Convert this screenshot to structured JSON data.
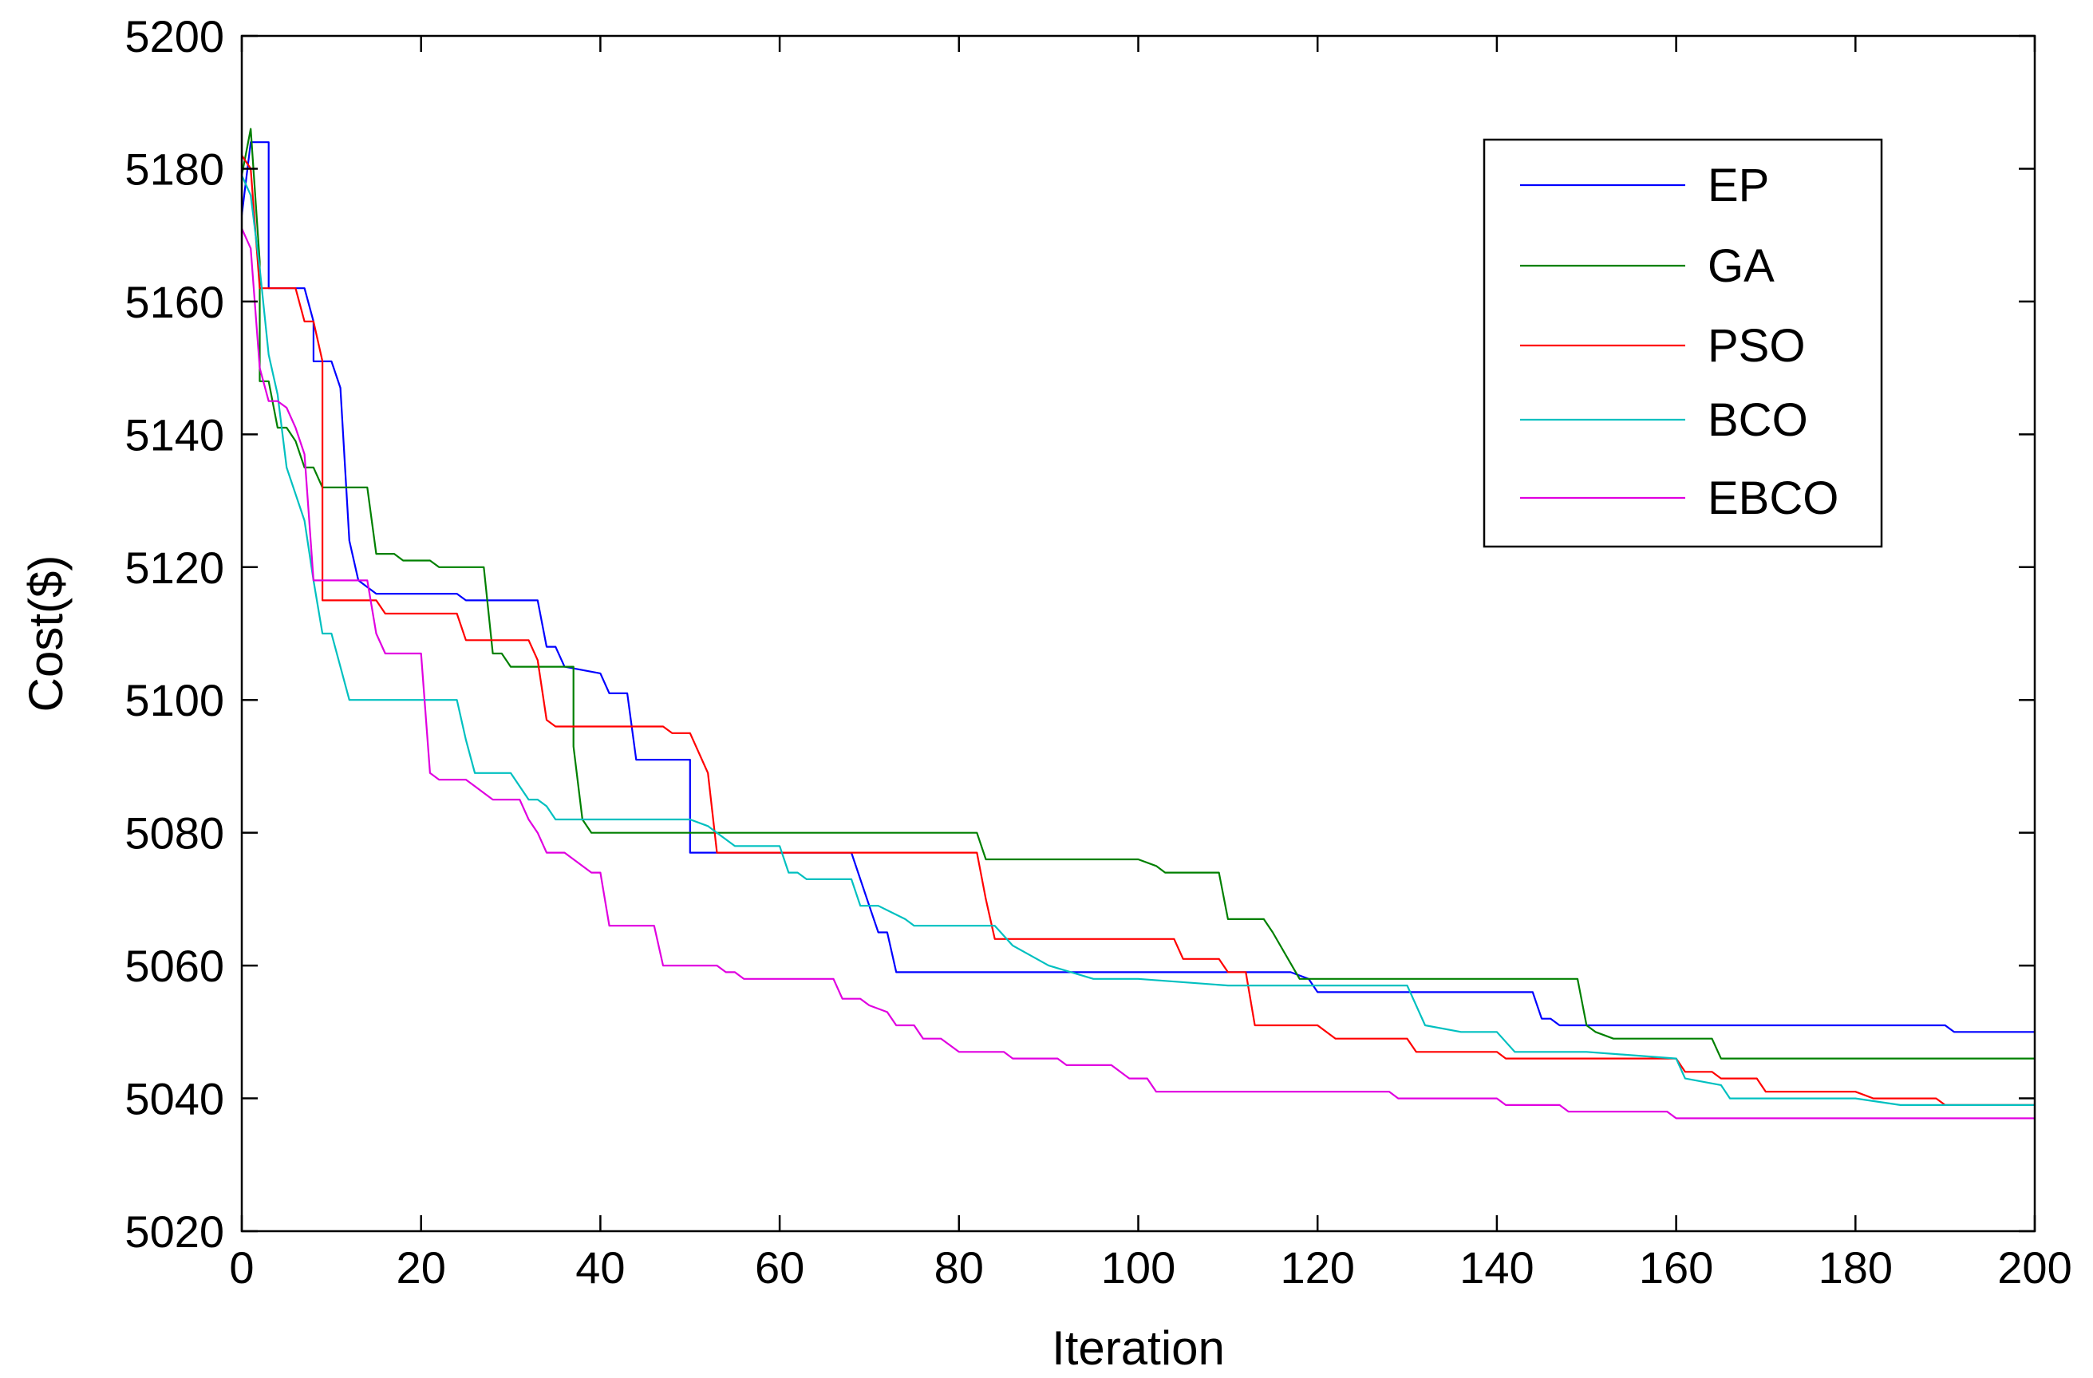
{
  "chart_data": {
    "type": "line",
    "title": "",
    "xlabel": "Iteration",
    "ylabel": "Cost($)",
    "xlim": [
      0,
      200
    ],
    "ylim": [
      5020,
      5200
    ],
    "xticks": [
      "0",
      "20",
      "40",
      "60",
      "80",
      "100",
      "120",
      "140",
      "160",
      "180",
      "200"
    ],
    "yticks": [
      "5020",
      "5040",
      "5060",
      "5080",
      "5100",
      "5120",
      "5140",
      "5160",
      "5180",
      "5200"
    ],
    "grid": false,
    "legend_position": "top-right",
    "series": [
      {
        "name": "EP",
        "color": "#0000ff",
        "points": [
          [
            0,
            5173
          ],
          [
            1,
            5184
          ],
          [
            3,
            5184
          ],
          [
            3,
            5162
          ],
          [
            7,
            5162
          ],
          [
            8,
            5157
          ],
          [
            8,
            5151
          ],
          [
            10,
            5151
          ],
          [
            11,
            5147
          ],
          [
            12,
            5124
          ],
          [
            13,
            5118
          ],
          [
            14,
            5117
          ],
          [
            15,
            5116
          ],
          [
            20,
            5116
          ],
          [
            24,
            5116
          ],
          [
            25,
            5115
          ],
          [
            33,
            5115
          ],
          [
            34,
            5108
          ],
          [
            35,
            5108
          ],
          [
            36,
            5105
          ],
          [
            40,
            5104
          ],
          [
            41,
            5101
          ],
          [
            43,
            5101
          ],
          [
            44,
            5091
          ],
          [
            45,
            5091
          ],
          [
            50,
            5091
          ],
          [
            50,
            5077
          ],
          [
            53,
            5077
          ],
          [
            60,
            5077
          ],
          [
            68,
            5077
          ],
          [
            70,
            5069
          ],
          [
            71,
            5065
          ],
          [
            72,
            5065
          ],
          [
            73,
            5059
          ],
          [
            100,
            5059
          ],
          [
            117,
            5059
          ],
          [
            119,
            5058
          ],
          [
            120,
            5056
          ],
          [
            130,
            5056
          ],
          [
            135,
            5056
          ],
          [
            144,
            5056
          ],
          [
            145,
            5052
          ],
          [
            146,
            5052
          ],
          [
            147,
            5051
          ],
          [
            148,
            5051
          ],
          [
            150,
            5051
          ],
          [
            160,
            5051
          ],
          [
            170,
            5051
          ],
          [
            190,
            5051
          ],
          [
            191,
            5050
          ],
          [
            200,
            5050
          ]
        ]
      },
      {
        "name": "GA",
        "color": "#008000",
        "points": [
          [
            0,
            5179
          ],
          [
            1,
            5186
          ],
          [
            2,
            5166
          ],
          [
            2,
            5148
          ],
          [
            3,
            5148
          ],
          [
            4,
            5141
          ],
          [
            5,
            5141
          ],
          [
            6,
            5139
          ],
          [
            7,
            5135
          ],
          [
            8,
            5135
          ],
          [
            9,
            5132
          ],
          [
            10,
            5132
          ],
          [
            14,
            5132
          ],
          [
            15,
            5122
          ],
          [
            17,
            5122
          ],
          [
            18,
            5121
          ],
          [
            21,
            5121
          ],
          [
            22,
            5120
          ],
          [
            27,
            5120
          ],
          [
            28,
            5107
          ],
          [
            29,
            5107
          ],
          [
            30,
            5105
          ],
          [
            37,
            5105
          ],
          [
            37,
            5093
          ],
          [
            38,
            5082
          ],
          [
            39,
            5080
          ],
          [
            40,
            5080
          ],
          [
            60,
            5080
          ],
          [
            82,
            5080
          ],
          [
            83,
            5076
          ],
          [
            100,
            5076
          ],
          [
            102,
            5075
          ],
          [
            103,
            5074
          ],
          [
            109,
            5074
          ],
          [
            110,
            5067
          ],
          [
            114,
            5067
          ],
          [
            115,
            5065
          ],
          [
            118,
            5058
          ],
          [
            120,
            5058
          ],
          [
            149,
            5058
          ],
          [
            150,
            5051
          ],
          [
            151,
            5050
          ],
          [
            153,
            5049
          ],
          [
            157,
            5049
          ],
          [
            164,
            5049
          ],
          [
            165,
            5046
          ],
          [
            200,
            5046
          ]
        ]
      },
      {
        "name": "PSO",
        "color": "#ff0000",
        "points": [
          [
            0,
            5182
          ],
          [
            1,
            5180
          ],
          [
            2,
            5162
          ],
          [
            6,
            5162
          ],
          [
            7,
            5157
          ],
          [
            8,
            5157
          ],
          [
            9,
            5151
          ],
          [
            9,
            5115
          ],
          [
            15,
            5115
          ],
          [
            16,
            5113
          ],
          [
            24,
            5113
          ],
          [
            25,
            5109
          ],
          [
            32,
            5109
          ],
          [
            33,
            5106
          ],
          [
            34,
            5097
          ],
          [
            35,
            5096
          ],
          [
            37,
            5096
          ],
          [
            47,
            5096
          ],
          [
            48,
            5095
          ],
          [
            50,
            5095
          ],
          [
            52,
            5089
          ],
          [
            53,
            5077
          ],
          [
            60,
            5077
          ],
          [
            82,
            5077
          ],
          [
            83,
            5070
          ],
          [
            84,
            5064
          ],
          [
            100,
            5064
          ],
          [
            104,
            5064
          ],
          [
            105,
            5061
          ],
          [
            109,
            5061
          ],
          [
            110,
            5059
          ],
          [
            112,
            5059
          ],
          [
            113,
            5051
          ],
          [
            120,
            5051
          ],
          [
            122,
            5049
          ],
          [
            130,
            5049
          ],
          [
            131,
            5047
          ],
          [
            140,
            5047
          ],
          [
            141,
            5046
          ],
          [
            150,
            5046
          ],
          [
            160,
            5046
          ],
          [
            161,
            5044
          ],
          [
            164,
            5044
          ],
          [
            165,
            5043
          ],
          [
            169,
            5043
          ],
          [
            170,
            5041
          ],
          [
            180,
            5041
          ],
          [
            182,
            5040
          ],
          [
            189,
            5040
          ],
          [
            190,
            5039
          ],
          [
            200,
            5039
          ]
        ]
      },
      {
        "name": "BCO",
        "color": "#00c0c0",
        "points": [
          [
            0,
            5179
          ],
          [
            1,
            5176
          ],
          [
            2,
            5165
          ],
          [
            3,
            5152
          ],
          [
            4,
            5146
          ],
          [
            5,
            5135
          ],
          [
            6,
            5131
          ],
          [
            7,
            5127
          ],
          [
            8,
            5118
          ],
          [
            9,
            5110
          ],
          [
            10,
            5110
          ],
          [
            11,
            5105
          ],
          [
            12,
            5100
          ],
          [
            24,
            5100
          ],
          [
            25,
            5094
          ],
          [
            26,
            5089
          ],
          [
            30,
            5089
          ],
          [
            32,
            5085
          ],
          [
            33,
            5085
          ],
          [
            34,
            5084
          ],
          [
            35,
            5082
          ],
          [
            40,
            5082
          ],
          [
            50,
            5082
          ],
          [
            52,
            5081
          ],
          [
            53,
            5080
          ],
          [
            55,
            5078
          ],
          [
            60,
            5078
          ],
          [
            61,
            5074
          ],
          [
            62,
            5074
          ],
          [
            63,
            5073
          ],
          [
            68,
            5073
          ],
          [
            69,
            5069
          ],
          [
            71,
            5069
          ],
          [
            74,
            5067
          ],
          [
            75,
            5066
          ],
          [
            84,
            5066
          ],
          [
            86,
            5063
          ],
          [
            90,
            5060
          ],
          [
            95,
            5058
          ],
          [
            100,
            5058
          ],
          [
            110,
            5057
          ],
          [
            120,
            5057
          ],
          [
            130,
            5057
          ],
          [
            132,
            5051
          ],
          [
            136,
            5050
          ],
          [
            140,
            5050
          ],
          [
            142,
            5047
          ],
          [
            150,
            5047
          ],
          [
            160,
            5046
          ],
          [
            161,
            5043
          ],
          [
            165,
            5042
          ],
          [
            166,
            5040
          ],
          [
            167,
            5040
          ],
          [
            170,
            5040
          ],
          [
            180,
            5040
          ],
          [
            185,
            5039
          ],
          [
            200,
            5039
          ]
        ]
      },
      {
        "name": "EBCO",
        "color": "#e000e0",
        "points": [
          [
            0,
            5171
          ],
          [
            1,
            5168
          ],
          [
            2,
            5150
          ],
          [
            3,
            5145
          ],
          [
            4,
            5145
          ],
          [
            5,
            5144
          ],
          [
            6,
            5141
          ],
          [
            7,
            5137
          ],
          [
            8,
            5118
          ],
          [
            12,
            5118
          ],
          [
            14,
            5118
          ],
          [
            15,
            5110
          ],
          [
            16,
            5107
          ],
          [
            20,
            5107
          ],
          [
            21,
            5089
          ],
          [
            22,
            5088
          ],
          [
            25,
            5088
          ],
          [
            26,
            5087
          ],
          [
            27,
            5086
          ],
          [
            28,
            5085
          ],
          [
            31,
            5085
          ],
          [
            32,
            5082
          ],
          [
            33,
            5080
          ],
          [
            34,
            5077
          ],
          [
            36,
            5077
          ],
          [
            38,
            5075
          ],
          [
            39,
            5074
          ],
          [
            39,
            5074
          ],
          [
            40,
            5074
          ],
          [
            41,
            5066
          ],
          [
            46,
            5066
          ],
          [
            47,
            5060
          ],
          [
            53,
            5060
          ],
          [
            54,
            5059
          ],
          [
            55,
            5059
          ],
          [
            56,
            5058
          ],
          [
            66,
            5058
          ],
          [
            67,
            5055
          ],
          [
            69,
            5055
          ],
          [
            70,
            5054
          ],
          [
            72,
            5053
          ],
          [
            73,
            5051
          ],
          [
            75,
            5051
          ],
          [
            76,
            5049
          ],
          [
            78,
            5049
          ],
          [
            80,
            5047
          ],
          [
            85,
            5047
          ],
          [
            86,
            5046
          ],
          [
            91,
            5046
          ],
          [
            92,
            5045
          ],
          [
            97,
            5045
          ],
          [
            99,
            5043
          ],
          [
            101,
            5043
          ],
          [
            102,
            5041
          ],
          [
            120,
            5041
          ],
          [
            128,
            5041
          ],
          [
            129,
            5040
          ],
          [
            140,
            5040
          ],
          [
            141,
            5039
          ],
          [
            147,
            5039
          ],
          [
            148,
            5038
          ],
          [
            159,
            5038
          ],
          [
            160,
            5037
          ],
          [
            200,
            5037
          ]
        ]
      }
    ]
  }
}
